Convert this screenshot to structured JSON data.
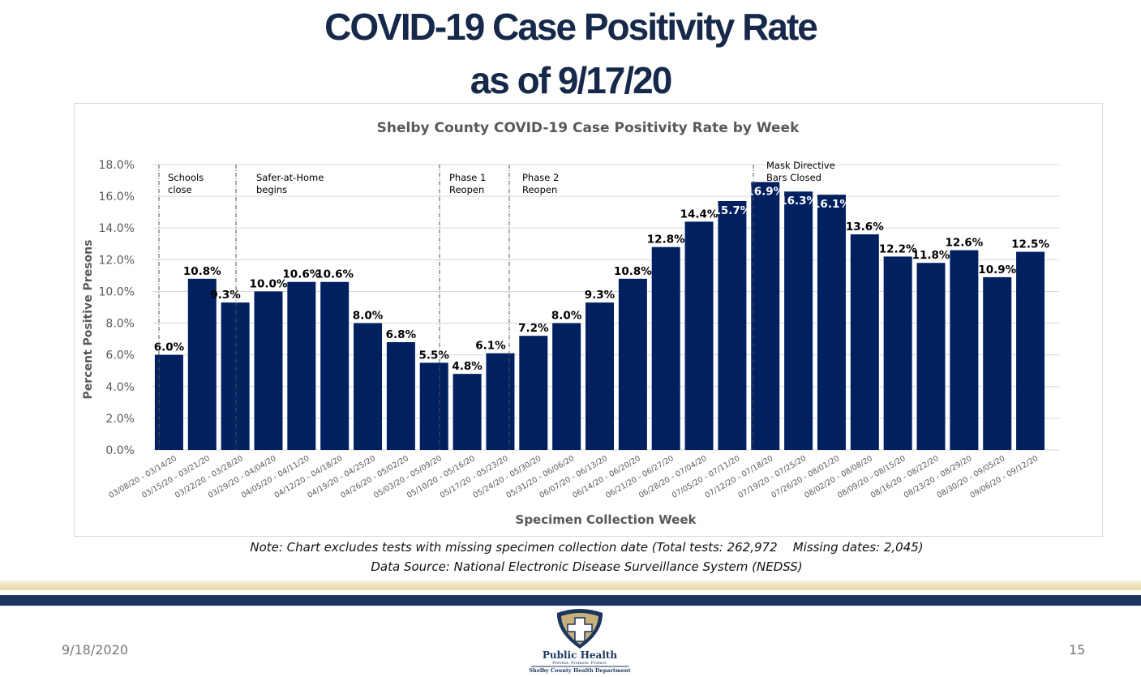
{
  "slide": {
    "title_line1": "COVID-19 Case Positivity Rate",
    "title_line2": "as of 9/17/20",
    "note": "Note: Chart excludes tests with missing specimen collection date (Total tests: 262,972    Missing dates: 2,045)",
    "source": "Data Source: National Electronic Disease Surveillance System (NEDSS)",
    "date": "9/18/2020",
    "page_number": "15",
    "logo": {
      "name": "Public Health",
      "tagline": "Prevent. Promote. Protect.",
      "org": "Shelby County Health Department"
    },
    "colors": {
      "title": "#17294a",
      "bar": "#002060",
      "band_dark": "#1b365d",
      "band_gold": "#e8d9a8"
    }
  },
  "chart_data": {
    "type": "bar",
    "title": "Shelby County COVID-19 Case Positivity Rate by Week",
    "xlabel": "Specimen Collection Week",
    "ylabel": "Percent Positive Presons",
    "ylim": [
      0,
      18
    ],
    "yticks": [
      "0.0%",
      "2.0%",
      "4.0%",
      "6.0%",
      "8.0%",
      "10.0%",
      "12.0%",
      "14.0%",
      "16.0%",
      "18.0%"
    ],
    "grid": true,
    "legend": "none",
    "categories": [
      "03/08/20 - 03/14/20",
      "03/15/20 - 03/21/20",
      "03/22/20 - 03/28/20",
      "03/29/20 - 04/04/20",
      "04/05/20 - 04/11/20",
      "04/12/20 - 04/18/20",
      "04/19/20 - 04/25/20",
      "04/26/20 - 05/02/20",
      "05/03/20 - 05/09/20",
      "05/10/20 - 05/16/20",
      "05/17/20 - 05/23/20",
      "05/24/20 - 05/30/20",
      "05/31/20 - 06/06/20",
      "06/07/20 - 06/13/20",
      "06/14/20 - 06/20/20",
      "06/21/20 - 06/27/20",
      "06/28/20 - 07/04/20",
      "07/05/20 - 07/11/20",
      "07/12/20 - 07/18/20",
      "07/19/20 - 07/25/20",
      "07/26/20 - 08/01/20",
      "08/02/20 - 08/08/20",
      "08/09/20 - 08/15/20",
      "08/16/20 - 08/22/20",
      "08/23/20 - 08/29/20",
      "08/30/20 - 09/05/20",
      "09/06/20 - 09/12/20"
    ],
    "values": [
      6.0,
      10.8,
      9.3,
      10.0,
      10.6,
      10.6,
      8.0,
      6.8,
      5.5,
      4.8,
      6.1,
      7.2,
      8.0,
      9.3,
      10.8,
      12.8,
      14.4,
      15.7,
      16.9,
      16.3,
      16.1,
      13.6,
      12.2,
      11.8,
      12.6,
      10.9,
      12.5
    ],
    "data_labels": [
      "6.0%",
      "10.8%",
      "9.3%",
      "10.0%",
      "10.6%",
      "10.6%",
      "8.0%",
      "6.8%",
      "5.5%",
      "4.8%",
      "6.1%",
      "7.2%",
      "8.0%",
      "9.3%",
      "10.8%",
      "12.8%",
      "14.4%",
      "15.7%",
      "16.9%",
      "16.3%",
      "16.1%",
      "13.6%",
      "12.2%",
      "11.8%",
      "12.6%",
      "10.9%",
      "12.5%"
    ],
    "annotations": [
      {
        "lines": [
          "Schools",
          "close"
        ],
        "week": "03/08/20 - 03/14/20"
      },
      {
        "lines": [
          "Safer-at-Home",
          "begins"
        ],
        "week": "03/22/20 - 03/28/20"
      },
      {
        "lines": [
          "Phase 1",
          "Reopen"
        ],
        "week": "05/10/20 - 05/16/20"
      },
      {
        "lines": [
          "Phase 2",
          "Reopen"
        ],
        "week": "05/17/20 - 05/23/20"
      },
      {
        "lines": [
          "Mask Directive",
          "Bars Closed"
        ],
        "week": "07/12/20 - 07/18/20"
      }
    ]
  }
}
